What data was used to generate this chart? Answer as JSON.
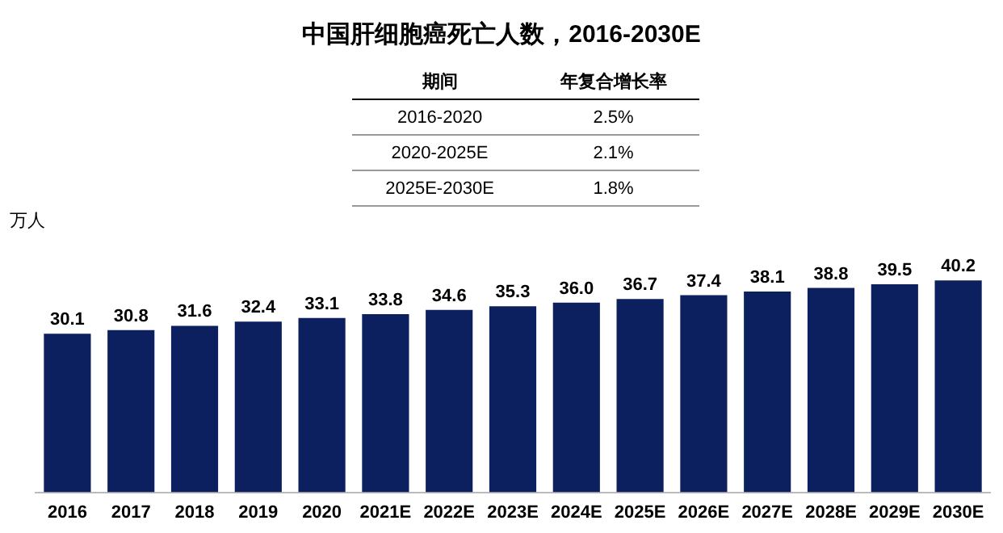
{
  "chart_data": {
    "type": "bar",
    "title": "中国肝细胞癌死亡人数，2016-2030E",
    "ylabel": "万人",
    "categories": [
      "2016",
      "2017",
      "2018",
      "2019",
      "2020",
      "2021E",
      "2022E",
      "2023E",
      "2024E",
      "2025E",
      "2026E",
      "2027E",
      "2028E",
      "2029E",
      "2030E"
    ],
    "values": [
      30.1,
      30.8,
      31.6,
      32.4,
      33.1,
      33.8,
      34.6,
      35.3,
      36.0,
      36.7,
      37.4,
      38.1,
      38.8,
      39.5,
      40.2
    ],
    "value_labels": [
      "30.1",
      "30.8",
      "31.6",
      "32.4",
      "33.1",
      "33.8",
      "34.6",
      "35.3",
      "36.0",
      "36.7",
      "37.4",
      "38.1",
      "38.8",
      "39.5",
      "40.2"
    ],
    "color": "#0c1f5e",
    "grid": false,
    "legend": false,
    "annotations": [
      "期间",
      "年复合增长率",
      "2016-2020",
      "2.5%",
      "2020-2025E",
      "2.1%",
      "2025E-2030E",
      "1.8%"
    ]
  }
}
